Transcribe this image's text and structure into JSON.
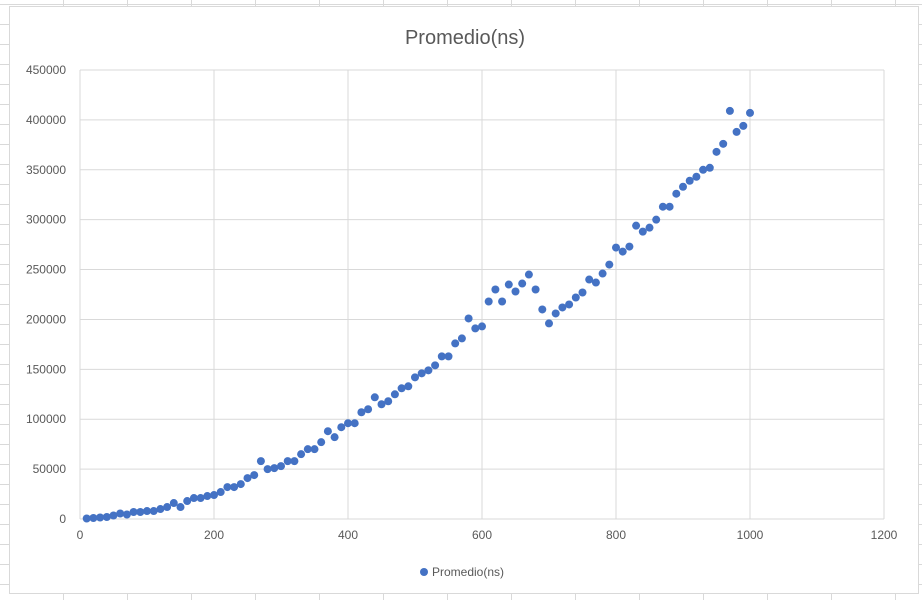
{
  "chart_data": {
    "type": "scatter",
    "title": "Promedio(ns)",
    "xlabel": "",
    "ylabel": "",
    "xlim": [
      0,
      1200
    ],
    "ylim": [
      0,
      450000
    ],
    "x_ticks": [
      "0",
      "200",
      "400",
      "600",
      "800",
      "1000",
      "1200"
    ],
    "y_ticks": [
      "0",
      "50000",
      "100000",
      "150000",
      "200000",
      "250000",
      "300000",
      "350000",
      "400000",
      "450000"
    ],
    "grid": true,
    "legend": "bottom",
    "series": [
      {
        "name": "Promedio(ns)",
        "color": "#4472c4",
        "points": [
          [
            10,
            500
          ],
          [
            20,
            1000
          ],
          [
            30,
            1500
          ],
          [
            40,
            2000
          ],
          [
            50,
            3500
          ],
          [
            60,
            5500
          ],
          [
            70,
            4500
          ],
          [
            80,
            7000
          ],
          [
            90,
            7000
          ],
          [
            100,
            8000
          ],
          [
            110,
            8000
          ],
          [
            120,
            10000
          ],
          [
            130,
            12000
          ],
          [
            140,
            16000
          ],
          [
            150,
            12000
          ],
          [
            160,
            18000
          ],
          [
            170,
            21000
          ],
          [
            180,
            21000
          ],
          [
            190,
            23000
          ],
          [
            200,
            24000
          ],
          [
            210,
            27000
          ],
          [
            220,
            32000
          ],
          [
            230,
            32000
          ],
          [
            240,
            35000
          ],
          [
            250,
            41000
          ],
          [
            260,
            44000
          ],
          [
            270,
            58000
          ],
          [
            280,
            50000
          ],
          [
            290,
            51000
          ],
          [
            300,
            53000
          ],
          [
            310,
            58000
          ],
          [
            320,
            58000
          ],
          [
            330,
            65000
          ],
          [
            340,
            70000
          ],
          [
            350,
            70000
          ],
          [
            360,
            77000
          ],
          [
            370,
            88000
          ],
          [
            380,
            82000
          ],
          [
            390,
            92000
          ],
          [
            400,
            96000
          ],
          [
            410,
            96000
          ],
          [
            420,
            107000
          ],
          [
            430,
            110000
          ],
          [
            440,
            122000
          ],
          [
            450,
            115000
          ],
          [
            460,
            118000
          ],
          [
            470,
            125000
          ],
          [
            480,
            131000
          ],
          [
            490,
            133000
          ],
          [
            500,
            142000
          ],
          [
            510,
            146000
          ],
          [
            520,
            149000
          ],
          [
            530,
            154000
          ],
          [
            540,
            163000
          ],
          [
            550,
            163000
          ],
          [
            560,
            176000
          ],
          [
            570,
            181000
          ],
          [
            580,
            201000
          ],
          [
            590,
            191000
          ],
          [
            600,
            193000
          ],
          [
            610,
            218000
          ],
          [
            620,
            230000
          ],
          [
            630,
            218000
          ],
          [
            640,
            235000
          ],
          [
            650,
            228000
          ],
          [
            660,
            236000
          ],
          [
            670,
            245000
          ],
          [
            680,
            230000
          ],
          [
            690,
            210000
          ],
          [
            700,
            196000
          ],
          [
            710,
            206000
          ],
          [
            720,
            212000
          ],
          [
            730,
            215000
          ],
          [
            740,
            222000
          ],
          [
            750,
            227000
          ],
          [
            760,
            240000
          ],
          [
            770,
            237000
          ],
          [
            780,
            246000
          ],
          [
            790,
            255000
          ],
          [
            800,
            272000
          ],
          [
            810,
            268000
          ],
          [
            820,
            273000
          ],
          [
            830,
            294000
          ],
          [
            840,
            288000
          ],
          [
            850,
            292000
          ],
          [
            860,
            300000
          ],
          [
            870,
            313000
          ],
          [
            880,
            313000
          ],
          [
            890,
            326000
          ],
          [
            900,
            333000
          ],
          [
            910,
            339000
          ],
          [
            920,
            343000
          ],
          [
            930,
            350000
          ],
          [
            940,
            352000
          ],
          [
            950,
            368000
          ],
          [
            960,
            376000
          ],
          [
            970,
            409000
          ],
          [
            980,
            388000
          ],
          [
            990,
            394000
          ],
          [
            1000,
            407000
          ]
        ]
      }
    ]
  }
}
